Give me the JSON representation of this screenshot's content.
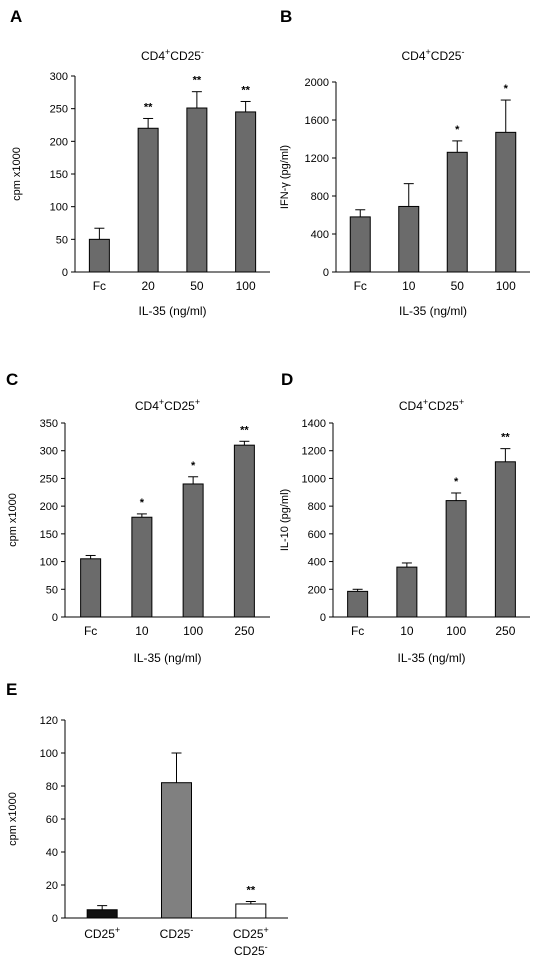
{
  "chart_data": [
    {
      "panel": "A",
      "type": "bar",
      "title": {
        "base1": "CD4",
        "sup1": "+",
        "base2": "CD25",
        "sup2": "-"
      },
      "xlabel": "IL-35 (ng/ml)",
      "ylabel": "cpm x1000",
      "ylim": [
        0,
        300
      ],
      "yticks": [
        0,
        50,
        100,
        150,
        200,
        250,
        300
      ],
      "categories": [
        "Fc",
        "20",
        "50",
        "100"
      ],
      "values": [
        50,
        220,
        251,
        245
      ],
      "errors": [
        17,
        15,
        25,
        16
      ],
      "significance": [
        "",
        "**",
        "**",
        "**"
      ],
      "bar_color": "#6b6b6b"
    },
    {
      "panel": "B",
      "type": "bar",
      "title": {
        "base1": "CD4",
        "sup1": "+",
        "base2": "CD25",
        "sup2": "-"
      },
      "xlabel": "IL-35 (ng/ml)",
      "ylabel": "IFN-γ (pg/ml)",
      "ylim": [
        0,
        2000
      ],
      "yticks": [
        0,
        400,
        800,
        1200,
        1600,
        2000
      ],
      "categories": [
        "Fc",
        "10",
        "50",
        "100"
      ],
      "values": [
        580,
        690,
        1260,
        1470
      ],
      "errors": [
        75,
        240,
        120,
        340
      ],
      "significance": [
        "",
        "",
        "*",
        "*"
      ],
      "bar_color": "#6b6b6b"
    },
    {
      "panel": "C",
      "type": "bar",
      "title": {
        "base1": "CD4",
        "sup1": "+",
        "base2": "CD25",
        "sup2": "+"
      },
      "xlabel": "IL-35 (ng/ml)",
      "ylabel": "cpm x1000",
      "ylim": [
        0,
        350
      ],
      "yticks": [
        0,
        50,
        100,
        150,
        200,
        250,
        300,
        350
      ],
      "categories": [
        "Fc",
        "10",
        "100",
        "250"
      ],
      "values": [
        105,
        180,
        240,
        310
      ],
      "errors": [
        6,
        6,
        13,
        7
      ],
      "significance": [
        "",
        "*",
        "*",
        "**"
      ],
      "bar_color": "#6b6b6b"
    },
    {
      "panel": "D",
      "type": "bar",
      "title": {
        "base1": "CD4",
        "sup1": "+",
        "base2": "CD25",
        "sup2": "+"
      },
      "xlabel": "IL-35 (ng/ml)",
      "ylabel": "IL-10 (pg/ml)",
      "ylim": [
        0,
        1400
      ],
      "yticks": [
        0,
        200,
        400,
        600,
        800,
        1000,
        1200,
        1400
      ],
      "categories": [
        "Fc",
        "10",
        "100",
        "250"
      ],
      "values": [
        185,
        360,
        840,
        1120
      ],
      "errors": [
        15,
        30,
        55,
        95
      ],
      "significance": [
        "",
        "",
        "*",
        "**"
      ],
      "bar_color": "#6b6b6b"
    },
    {
      "panel": "E",
      "type": "bar",
      "title": {
        "base1": "",
        "sup1": "",
        "base2": "",
        "sup2": ""
      },
      "xlabel": "",
      "ylabel": "cpm x1000",
      "ylim": [
        0,
        120
      ],
      "yticks": [
        0,
        20,
        40,
        60,
        80,
        100,
        120
      ],
      "categories": [
        [
          {
            "t": "CD25",
            "s": "+"
          }
        ],
        [
          {
            "t": "CD25",
            "s": "-"
          }
        ],
        [
          {
            "t": "CD25",
            "s": "+"
          },
          {
            "t": "CD25",
            "s": "-"
          }
        ]
      ],
      "values": [
        5,
        82,
        8.5
      ],
      "errors": [
        2.5,
        18,
        1.5
      ],
      "significance": [
        "",
        "",
        "**"
      ],
      "bar_colors": [
        "#111111",
        "#808080",
        "#ffffff"
      ]
    }
  ]
}
